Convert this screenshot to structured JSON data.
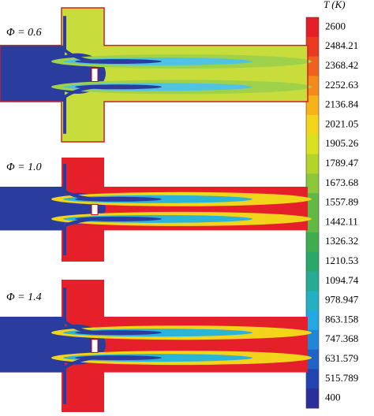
{
  "panels": [
    {
      "label": "Φ = 0.6"
    },
    {
      "label": "Φ = 1.0"
    },
    {
      "label": "Φ = 1.4"
    }
  ],
  "colorbar": {
    "title": "T (K)",
    "ticks": [
      "2600",
      "2484.21",
      "2368.42",
      "2252.63",
      "2136.84",
      "2021.05",
      "1905.26",
      "1789.47",
      "1673.68",
      "1557.89",
      "1442.11",
      "1326.32",
      "1210.53",
      "1094.74",
      "978.947",
      "863.158",
      "747.368",
      "631.579",
      "515.789",
      "400"
    ]
  }
}
